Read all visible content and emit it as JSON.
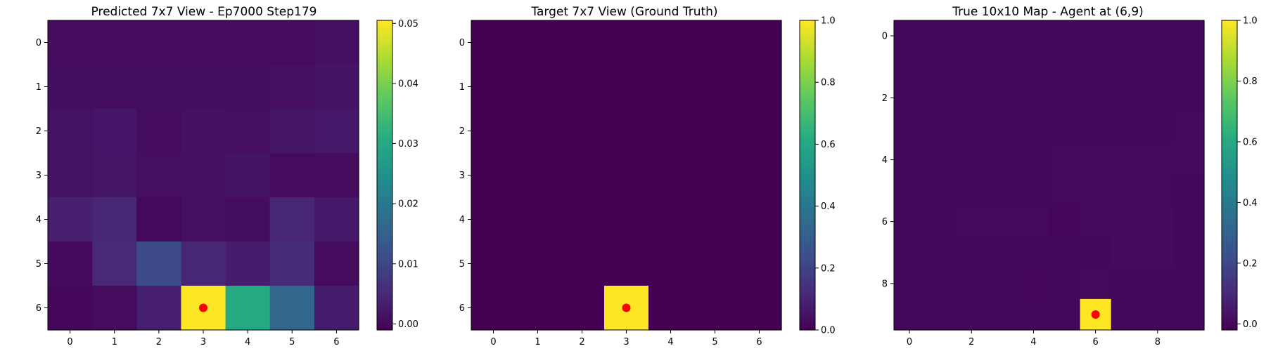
{
  "chart_data": [
    {
      "type": "heatmap",
      "title": "Predicted 7x7 View - Ep7000 Step179",
      "rows": 7,
      "cols": 7,
      "xticks": [
        0,
        1,
        2,
        3,
        4,
        5,
        6
      ],
      "yticks": [
        0,
        1,
        2,
        3,
        4,
        5,
        6
      ],
      "values": [
        [
          0.0005,
          0.0005,
          0.0005,
          0.0005,
          0.0005,
          0.0006,
          0.001
        ],
        [
          0.0008,
          0.0008,
          0.0008,
          0.0008,
          0.0008,
          0.001,
          0.0018
        ],
        [
          0.0015,
          0.0022,
          0.0005,
          0.0012,
          0.001,
          0.002,
          0.0025
        ],
        [
          0.0015,
          0.002,
          0.001,
          0.001,
          0.0018,
          0.0005,
          0.0005
        ],
        [
          0.0035,
          0.0045,
          0.0002,
          0.001,
          0.0008,
          0.0045,
          0.0025
        ],
        [
          0.0002,
          0.005,
          0.011,
          0.0045,
          0.003,
          0.0055,
          0.0005
        ],
        [
          -0.0002,
          0.0005,
          0.0035,
          0.051,
          0.03,
          0.016,
          0.003
        ]
      ],
      "vmin": -0.001,
      "vmax": 0.0505,
      "colorbar_ticks": [
        0.0,
        0.01,
        0.02,
        0.03,
        0.04,
        0.05
      ],
      "colorbar_labels": [
        "0.00",
        "0.01",
        "0.02",
        "0.03",
        "0.04",
        "0.05"
      ],
      "marker": {
        "col": 3,
        "row": 6,
        "color": "#ff0000"
      }
    },
    {
      "type": "heatmap",
      "title": "Target 7x7 View (Ground Truth)",
      "rows": 7,
      "cols": 7,
      "xticks": [
        0,
        1,
        2,
        3,
        4,
        5,
        6
      ],
      "yticks": [
        0,
        1,
        2,
        3,
        4,
        5,
        6
      ],
      "values": [
        [
          0,
          0,
          0,
          0,
          0,
          0,
          0
        ],
        [
          0,
          0,
          0,
          0,
          0,
          0,
          0
        ],
        [
          0,
          0,
          0,
          0,
          0,
          0,
          0
        ],
        [
          0,
          0,
          0,
          0,
          0,
          0,
          0
        ],
        [
          0,
          0,
          0,
          0,
          0,
          0,
          0
        ],
        [
          0,
          0,
          0,
          0,
          0,
          0,
          0
        ],
        [
          0,
          0,
          0,
          1,
          0,
          0,
          0
        ]
      ],
      "vmin": 0,
      "vmax": 1,
      "colorbar_ticks": [
        0,
        0.2,
        0.4,
        0.6,
        0.8,
        1.0
      ],
      "colorbar_labels": [
        "0.0",
        "0.2",
        "0.4",
        "0.6",
        "0.8",
        "1.0"
      ],
      "marker": {
        "col": 3,
        "row": 6,
        "color": "#ff0000"
      }
    },
    {
      "type": "heatmap",
      "title": "True 10x10 Map - Agent at (6,9)",
      "rows": 10,
      "cols": 10,
      "xticks": [
        0,
        2,
        4,
        6,
        8
      ],
      "yticks": [
        0,
        2,
        4,
        6,
        8
      ],
      "values": [
        [
          0,
          0,
          0,
          0,
          0,
          0,
          0,
          0,
          0,
          0
        ],
        [
          0,
          0,
          0,
          0,
          0,
          0,
          0,
          0,
          0,
          0
        ],
        [
          0,
          0,
          0,
          0,
          0,
          0,
          0,
          0,
          0,
          0
        ],
        [
          0,
          0,
          0,
          0,
          0,
          0,
          0,
          0,
          0,
          0.004
        ],
        [
          0,
          0,
          0,
          0,
          0,
          0.004,
          0.004,
          0.004,
          0.004,
          0.004
        ],
        [
          0,
          0,
          0,
          0,
          0,
          0.004,
          0.004,
          0.008,
          0.004,
          0
        ],
        [
          0,
          0,
          0.008,
          0.004,
          0.004,
          -0.004,
          0.004,
          0.008,
          0.008,
          0
        ],
        [
          0,
          0,
          0,
          0,
          0,
          0,
          0,
          0.008,
          0.008,
          0
        ],
        [
          0,
          0,
          0,
          0,
          -0.004,
          0,
          0.004,
          0,
          0,
          0
        ],
        [
          0,
          0,
          0,
          0,
          0,
          0,
          1.0,
          0,
          0,
          0
        ]
      ],
      "vmin": -0.02,
      "vmax": 1.0,
      "colorbar_ticks": [
        0,
        0.2,
        0.4,
        0.6,
        0.8,
        1.0
      ],
      "colorbar_labels": [
        "0.0",
        "0.2",
        "0.4",
        "0.6",
        "0.8",
        "1.0"
      ],
      "marker": {
        "col": 6,
        "row": 9,
        "color": "#ff0000"
      }
    }
  ]
}
